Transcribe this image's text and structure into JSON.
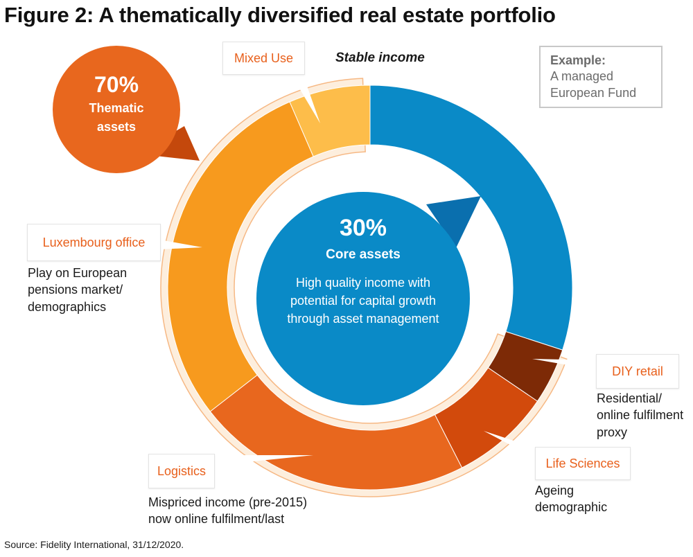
{
  "title": "Figure 2: A thematically diversified real estate portfolio",
  "stable_income": "Stable income",
  "example": {
    "heading": "Example:",
    "line1": "A managed",
    "line2": "European Fund"
  },
  "core": {
    "pct": "30%",
    "name": "Core assets",
    "line1": "High quality income with",
    "line2": "potential for capital growth",
    "line3": "through asset management"
  },
  "thematic": {
    "pct": "70%",
    "name_line1": "Thematic",
    "name_line2": "assets"
  },
  "labels": {
    "mixed_use": "Mixed Use",
    "luxembourg": "Luxembourg office",
    "logistics": "Logistics",
    "diy": "DIY retail",
    "life": "Life Sciences"
  },
  "descriptions": {
    "luxembourg": [
      "Play on European",
      "pensions market/",
      "demographics"
    ],
    "logistics": [
      "Mispriced income (pre-2015)",
      "now online fulfilment/last"
    ],
    "diy": [
      "Residential/",
      "online fulfilment",
      "proxy"
    ],
    "life": [
      "Ageing",
      "demographic"
    ]
  },
  "source": "Source: Fidelity International, 31/12/2020.",
  "colors": {
    "core": "#0a8ac7",
    "thematic": "#e8671e",
    "thematic_dark": "#c4480c",
    "label_text": "#e8601c",
    "mixed_use": "#fdbd4a",
    "luxembourg": "#f79a1e",
    "logistics": "#e8671e",
    "life_sciences": "#d24a0c",
    "diy_retail": "#7d2a06",
    "frame": "#fdeedd",
    "frame_stroke": "#f6b884"
  },
  "chart_data": {
    "type": "pie",
    "donut": true,
    "unit": "%",
    "groups": [
      {
        "name": "Core assets",
        "value": 30
      },
      {
        "name": "Thematic assets",
        "value": 70
      }
    ],
    "slices": [
      {
        "name": "Core assets",
        "value": 30,
        "color": "#0a8ac7"
      },
      {
        "name": "DIY retail",
        "value": 4.5,
        "color": "#7d2a06"
      },
      {
        "name": "Life Sciences",
        "value": 8,
        "color": "#d24a0c"
      },
      {
        "name": "Logistics",
        "value": 22,
        "color": "#e8671e"
      },
      {
        "name": "Luxembourg office",
        "value": 29,
        "color": "#f79a1e"
      },
      {
        "name": "Mixed Use",
        "value": 6.5,
        "color": "#fdbd4a"
      }
    ]
  }
}
